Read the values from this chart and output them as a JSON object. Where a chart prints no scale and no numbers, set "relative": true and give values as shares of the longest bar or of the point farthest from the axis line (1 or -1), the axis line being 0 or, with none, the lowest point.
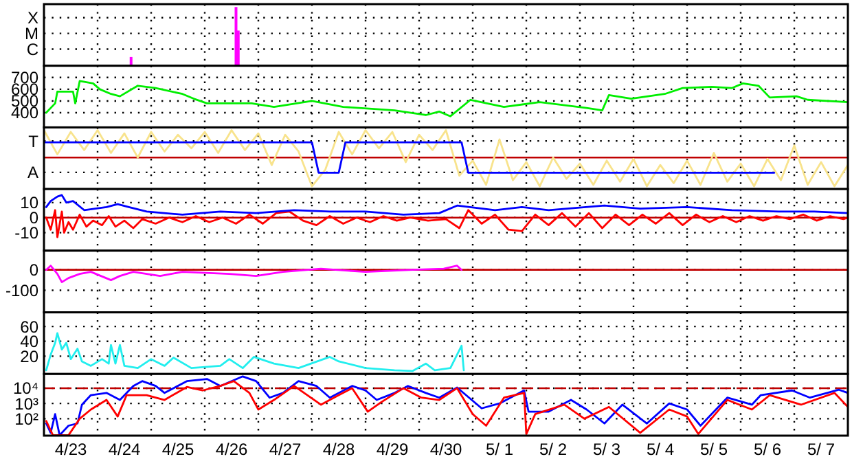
{
  "chart_data": [
    {
      "type": "bar",
      "xlim": [
        "--04-23T00:00",
        "--05-08T00:00"
      ],
      "xticks": [
        {
          "value": "--04-24T00:00",
          "label": null
        },
        {
          "value": "--04-25T00:00",
          "label": null
        },
        {
          "value": "--04-26T00:00",
          "label": null
        },
        {
          "value": "--04-27T00:00",
          "label": null
        },
        {
          "value": "--04-28T00:00",
          "label": null
        },
        {
          "value": "--04-29T00:00",
          "label": null
        },
        {
          "value": "--04-30T00:00",
          "label": null
        },
        {
          "value": "--05-01T00:00",
          "label": null
        },
        {
          "value": "--05-02T00:00",
          "label": null
        },
        {
          "value": "--05-03T00:00",
          "label": null
        },
        {
          "value": "--05-04T00:00",
          "label": null
        },
        {
          "value": "--05-05T00:00",
          "label": null
        },
        {
          "value": "--05-06T00:00",
          "label": null
        },
        {
          "value": "--05-07T00:00",
          "label": null
        }
      ],
      "relative": true,
      "annotations": [
        "X",
        "M",
        "C"
      ],
      "grid": true,
      "tick_labels": "y",
      "series": [
        {
          "color": "#ff00ff",
          "x": [
            "--04-24T15:00",
            "--04-26T14:00",
            "--04-26T15:00"
          ],
          "values": [
            0.15,
            1,
            0.6
          ]
        }
      ]
    },
    {
      "type": "line",
      "xlim": [
        "--04-23T00:00",
        "--05-08T00:00"
      ],
      "xticks": [
        {
          "value": "--04-24T00:00",
          "label": null
        },
        {
          "value": "--04-25T00:00",
          "label": null
        },
        {
          "value": "--04-26T00:00",
          "label": null
        },
        {
          "value": "--04-27T00:00",
          "label": null
        },
        {
          "value": "--04-28T00:00",
          "label": null
        },
        {
          "value": "--04-29T00:00",
          "label": null
        },
        {
          "value": "--04-30T00:00",
          "label": null
        },
        {
          "value": "--05-01T00:00",
          "label": null
        },
        {
          "value": "--05-02T00:00",
          "label": null
        },
        {
          "value": "--05-03T00:00",
          "label": null
        },
        {
          "value": "--05-04T00:00",
          "label": null
        },
        {
          "value": "--05-05T00:00",
          "label": null
        },
        {
          "value": "--05-06T00:00",
          "label": null
        },
        {
          "value": "--05-07T00:00",
          "label": null
        }
      ],
      "ylim": [
        275,
        800
      ],
      "yticks": [
        400,
        500,
        600,
        700
      ],
      "grid": true,
      "tick_labels": "y",
      "series": [
        {
          "color": "#00ee00",
          "x": [
            "--04-23T01:00",
            "--04-23T05:00",
            "--04-23T06:00",
            "--04-23T13:00",
            "--04-23T14:00",
            "--04-23T16:00",
            "--04-23T22:00",
            "--04-24T01:00",
            "--04-24T06:00",
            "--04-24T10:00",
            "--04-24T18:00",
            "--04-25T02:00",
            "--04-25T14:00",
            "--04-25T19:00",
            "--04-26T01:00",
            "--04-26T21:00",
            "--04-27T07:00",
            "--04-28T00:00",
            "--04-28T14:00",
            "--04-29T13:00",
            "--04-30T03:00",
            "--04-30T09:00",
            "--04-30T14:00",
            "--04-30T23:00",
            "--05-01T14:00",
            "--05-02T06:00",
            "--05-03T03:00",
            "--05-03T10:00",
            "--05-03T13:00",
            "--05-03T23:00",
            "--05-04T14:00",
            "--05-04T22:00",
            "--05-05T11:00",
            "--05-05T20:00",
            "--05-06T01:00",
            "--05-06T08:00",
            "--05-06T13:00",
            "--05-07T01:00",
            "--05-07T06:00",
            "--05-08T00:00"
          ],
          "values": [
            400,
            480,
            580,
            580,
            480,
            670,
            650,
            600,
            560,
            540,
            630,
            610,
            560,
            520,
            480,
            480,
            450,
            500,
            450,
            420,
            380,
            410,
            370,
            510,
            450,
            490,
            440,
            420,
            550,
            520,
            560,
            610,
            620,
            610,
            650,
            630,
            530,
            540,
            510,
            490
          ]
        }
      ]
    },
    {
      "type": "line",
      "xlim": [
        "--04-23T00:00",
        "--05-08T00:00"
      ],
      "xticks": [
        {
          "value": "--04-24T00:00",
          "label": null
        },
        {
          "value": "--04-25T00:00",
          "label": null
        },
        {
          "value": "--04-26T00:00",
          "label": null
        },
        {
          "value": "--04-27T00:00",
          "label": null
        },
        {
          "value": "--04-28T00:00",
          "label": null
        },
        {
          "value": "--04-29T00:00",
          "label": null
        },
        {
          "value": "--04-30T00:00",
          "label": null
        },
        {
          "value": "--05-01T00:00",
          "label": null
        },
        {
          "value": "--05-02T00:00",
          "label": null
        },
        {
          "value": "--05-03T00:00",
          "label": null
        },
        {
          "value": "--05-04T00:00",
          "label": null
        },
        {
          "value": "--05-05T00:00",
          "label": null
        },
        {
          "value": "--05-06T00:00",
          "label": null
        },
        {
          "value": "--05-07T00:00",
          "label": null
        }
      ],
      "relative": true,
      "annotations": [
        "T",
        "A"
      ],
      "grid": true,
      "tick_labels": "y",
      "ref_lines": [
        {
          "axis": "y",
          "value": 0,
          "color": "#c00000"
        }
      ],
      "series": [
        {
          "color": "#f8e38c",
          "x": [
            "--04-23T00:00",
            "--04-23T06:00",
            "--04-23T12:00",
            "--04-23T18:00",
            "--04-24T00:00",
            "--04-24T06:00",
            "--04-24T12:00",
            "--04-24T18:00",
            "--04-25T00:00",
            "--04-25T06:00",
            "--04-25T12:00",
            "--04-25T18:00",
            "--04-26T00:00",
            "--04-26T06:00",
            "--04-26T12:00",
            "--04-26T18:00",
            "--04-27T00:00",
            "--04-27T06:00",
            "--04-27T12:00",
            "--04-27T18:00",
            "--04-28T00:00",
            "--04-28T06:00",
            "--04-28T12:00",
            "--04-28T18:00",
            "--04-29T00:00",
            "--04-29T06:00",
            "--04-29T12:00",
            "--04-29T18:00",
            "--04-30T00:00",
            "--04-30T06:00",
            "--04-30T12:00",
            "--04-30T18:00",
            "--05-01T00:00",
            "--05-01T06:00",
            "--05-01T12:00",
            "--05-01T18:00",
            "--05-02T00:00",
            "--05-02T06:00",
            "--05-02T12:00",
            "--05-02T18:00",
            "--05-03T00:00",
            "--05-03T06:00",
            "--05-03T12:00",
            "--05-03T18:00",
            "--05-04T00:00",
            "--05-04T06:00",
            "--05-04T12:00",
            "--05-04T18:00",
            "--05-05T00:00",
            "--05-05T06:00",
            "--05-05T12:00",
            "--05-05T18:00",
            "--05-06T00:00",
            "--05-06T06:00",
            "--05-06T12:00",
            "--05-06T18:00",
            "--05-07T00:00",
            "--05-07T06:00",
            "--05-07T12:00",
            "--05-07T18:00",
            "--05-08T00:00"
          ],
          "values": [
            0.95,
            0.11,
            0.89,
            0.26,
            0.95,
            0.16,
            0.84,
            0,
            0.89,
            0.21,
            0.79,
            0.32,
            0.89,
            0.16,
            0.95,
            0.26,
            0.84,
            -0.26,
            0.79,
            0.21,
            -1,
            -0.42,
            0.89,
            0.11,
            0.95,
            0.32,
            0.89,
            -0.16,
            0.79,
            0.26,
            0.95,
            -0.63,
            -0.11,
            -0.95,
            0.63,
            -0.79,
            -0.16,
            -1,
            0,
            -0.74,
            -0.21,
            -0.95,
            -0.11,
            -0.84,
            -0.05,
            -1,
            -0.26,
            -0.89,
            -0.11,
            -0.95,
            0.16,
            -0.84,
            -0.21,
            -1,
            -0.05,
            -0.79,
            0.42,
            -0.95,
            -0.16,
            -1,
            -0.26
          ]
        },
        {
          "color": "#0000ff",
          "x": [
            "--04-23T00:00",
            "--04-28T00:00",
            "--04-28T03:00",
            "--04-28T12:00",
            "--04-28T15:00",
            "--04-30T19:00",
            "--04-30T22:00",
            "--05-06T15:00"
          ],
          "values": [
            0.53,
            0.53,
            -0.53,
            -0.53,
            0.53,
            0.53,
            -0.53,
            -0.53
          ]
        }
      ]
    },
    {
      "type": "line",
      "xlim": [
        "--04-23T00:00",
        "--05-08T00:00"
      ],
      "xticks": [
        {
          "value": "--04-24T00:00",
          "label": null
        },
        {
          "value": "--04-25T00:00",
          "label": null
        },
        {
          "value": "--04-26T00:00",
          "label": null
        },
        {
          "value": "--04-27T00:00",
          "label": null
        },
        {
          "value": "--04-28T00:00",
          "label": null
        },
        {
          "value": "--04-29T00:00",
          "label": null
        },
        {
          "value": "--04-30T00:00",
          "label": null
        },
        {
          "value": "--05-01T00:00",
          "label": null
        },
        {
          "value": "--05-02T00:00",
          "label": null
        },
        {
          "value": "--05-03T00:00",
          "label": null
        },
        {
          "value": "--05-04T00:00",
          "label": null
        },
        {
          "value": "--05-05T00:00",
          "label": null
        },
        {
          "value": "--05-06T00:00",
          "label": null
        },
        {
          "value": "--05-07T00:00",
          "label": null
        }
      ],
      "ylim": [
        -22,
        19
      ],
      "yticks": [
        -10,
        0,
        10
      ],
      "grid": true,
      "tick_labels": "y",
      "ref_lines": [
        {
          "axis": "y",
          "value": 0,
          "color": "#c00000"
        }
      ],
      "series": [
        {
          "color": "#ff0000",
          "x": [
            "--04-23T01:00",
            "--04-23T03:00",
            "--04-23T05:00",
            "--04-23T06:00",
            "--04-23T08:00",
            "--04-23T09:00",
            "--04-23T11:00",
            "--04-23T13:00",
            "--04-23T16:00",
            "--04-23T19:00",
            "--04-23T22:00",
            "--04-24T02:00",
            "--04-24T05:00",
            "--04-24T08:00",
            "--04-24T12:00",
            "--04-24T16:00",
            "--04-24T20:00",
            "--04-25T02:00",
            "--04-25T08:00",
            "--04-25T14:00",
            "--04-25T20:00",
            "--04-26T02:00",
            "--04-26T08:00",
            "--04-26T14:00",
            "--04-26T20:00",
            "--04-27T02:00",
            "--04-27T08:00",
            "--04-27T14:00",
            "--04-27T20:00",
            "--04-28T02:00",
            "--04-28T08:00",
            "--04-28T14:00",
            "--04-28T20:00",
            "--04-29T02:00",
            "--04-29T08:00",
            "--04-29T14:00",
            "--04-29T20:00",
            "--04-30T04:00",
            "--04-30T12:00",
            "--04-30T18:00",
            "--04-30T22:00",
            "--05-01T04:00",
            "--05-01T10:00",
            "--05-01T16:00",
            "--05-01T22:00",
            "--05-02T04:00",
            "--05-02T10:00",
            "--05-02T16:00",
            "--05-02T22:00",
            "--05-03T04:00",
            "--05-03T10:00",
            "--05-03T16:00",
            "--05-03T22:00",
            "--05-04T04:00",
            "--05-04T10:00",
            "--05-04T16:00",
            "--05-04T22:00",
            "--05-05T04:00",
            "--05-05T10:00",
            "--05-05T16:00",
            "--05-05T22:00",
            "--05-06T04:00",
            "--05-06T10:00",
            "--05-06T16:00",
            "--05-06T22:00",
            "--05-07T04:00",
            "--05-07T10:00",
            "--05-07T16:00",
            "--05-07T22:00",
            "--05-08T00:00"
          ],
          "values": [
            0,
            -8,
            5,
            -13,
            4,
            -10,
            -3,
            -8,
            2,
            -6,
            -2,
            -5,
            1,
            -6,
            -2,
            -7,
            -1,
            -4,
            0,
            -3,
            1,
            -3,
            0,
            -4,
            2,
            -4,
            3,
            4,
            -2,
            -5,
            1,
            -4,
            0,
            -3,
            1,
            -2,
            0,
            -2,
            -1,
            -7,
            5,
            -4,
            2,
            -8,
            -9,
            2,
            -5,
            3,
            -6,
            3,
            -7,
            2,
            -5,
            2,
            -4,
            3,
            -5,
            2,
            -3,
            1,
            -3,
            1,
            -2,
            1,
            -1,
            2,
            -2,
            1,
            -1,
            0
          ]
        },
        {
          "color": "#0000ff",
          "x": [
            "--04-23T01:00",
            "--04-23T03:00",
            "--04-23T06:00",
            "--04-23T08:00",
            "--04-23T10:00",
            "--04-23T13:00",
            "--04-23T18:00",
            "--04-24T04:00",
            "--04-24T09:00",
            "--04-24T14:00",
            "--04-24T22:00",
            "--04-25T14:00",
            "--04-26T07:00",
            "--04-26T23:00",
            "--04-27T16:00",
            "--04-28T08:00",
            "--04-29T00:00",
            "--04-29T17:00",
            "--04-30T09:00",
            "--04-30T17:00",
            "--05-01T10:00",
            "--05-01T22:00",
            "--05-02T10:00",
            "--05-03T11:00",
            "--05-04T03:00",
            "--05-05T00:00",
            "--05-05T20:00",
            "--05-06T17:00",
            "--05-07T09:00",
            "--05-08T00:00"
          ],
          "values": [
            7,
            11,
            14,
            15,
            10,
            11,
            5,
            7,
            9,
            7,
            4,
            2,
            4,
            3,
            5,
            4,
            4,
            2,
            3,
            8,
            5,
            7,
            5,
            8,
            6,
            7,
            5,
            4,
            4,
            3
          ]
        }
      ]
    },
    {
      "type": "line",
      "xlim": [
        "--04-23T00:00",
        "--05-08T00:00"
      ],
      "xticks": [
        {
          "value": "--04-24T00:00",
          "label": null
        },
        {
          "value": "--04-25T00:00",
          "label": null
        },
        {
          "value": "--04-26T00:00",
          "label": null
        },
        {
          "value": "--04-27T00:00",
          "label": null
        },
        {
          "value": "--04-28T00:00",
          "label": null
        },
        {
          "value": "--04-29T00:00",
          "label": null
        },
        {
          "value": "--04-30T00:00",
          "label": null
        },
        {
          "value": "--05-01T00:00",
          "label": null
        },
        {
          "value": "--05-02T00:00",
          "label": null
        },
        {
          "value": "--05-03T00:00",
          "label": null
        },
        {
          "value": "--05-04T00:00",
          "label": null
        },
        {
          "value": "--05-05T00:00",
          "label": null
        },
        {
          "value": "--05-06T00:00",
          "label": null
        },
        {
          "value": "--05-07T00:00",
          "label": null
        }
      ],
      "ylim": [
        -207,
        93
      ],
      "yticks": [
        -100,
        0
      ],
      "grid": true,
      "tick_labels": "y",
      "ref_lines": [
        {
          "axis": "y",
          "value": 0,
          "color": "#c00000"
        }
      ],
      "series": [
        {
          "color": "#ff00ff",
          "x": [
            "--04-23T01:00",
            "--04-23T03:00",
            "--04-23T06:00",
            "--04-23T08:00",
            "--04-23T11:00",
            "--04-23T16:00",
            "--04-23T21:00",
            "--04-24T06:00",
            "--04-24T10:00",
            "--04-24T16:00",
            "--04-25T04:00",
            "--04-25T14:00",
            "--04-26T11:00",
            "--04-26T23:00",
            "--04-27T11:00",
            "--04-28T04:00",
            "--04-29T00:00",
            "--04-29T21:00",
            "--04-30T11:00",
            "--04-30T17:00",
            "--04-30T19:00"
          ],
          "values": [
            0,
            20,
            -20,
            -60,
            -40,
            -20,
            -10,
            -50,
            -30,
            -10,
            -30,
            -10,
            -20,
            -30,
            -10,
            5,
            -10,
            0,
            5,
            20,
            0
          ]
        }
      ]
    },
    {
      "type": "line",
      "xlim": [
        "--04-23T00:00",
        "--05-08T00:00"
      ],
      "xticks": [
        {
          "value": "--04-24T00:00",
          "label": null
        },
        {
          "value": "--04-25T00:00",
          "label": null
        },
        {
          "value": "--04-26T00:00",
          "label": null
        },
        {
          "value": "--04-27T00:00",
          "label": null
        },
        {
          "value": "--04-28T00:00",
          "label": null
        },
        {
          "value": "--04-29T00:00",
          "label": null
        },
        {
          "value": "--04-30T00:00",
          "label": null
        },
        {
          "value": "--05-01T00:00",
          "label": null
        },
        {
          "value": "--05-02T00:00",
          "label": null
        },
        {
          "value": "--05-03T00:00",
          "label": null
        },
        {
          "value": "--05-04T00:00",
          "label": null
        },
        {
          "value": "--05-05T00:00",
          "label": null
        },
        {
          "value": "--05-06T00:00",
          "label": null
        },
        {
          "value": "--05-07T00:00",
          "label": null
        }
      ],
      "ylim": [
        -4,
        79
      ],
      "yticks": [
        20,
        40,
        60
      ],
      "grid": true,
      "tick_labels": "y",
      "series": [
        {
          "color": "#22eeee",
          "x": [
            "--04-23T01:00",
            "--04-23T03:00",
            "--04-23T05:00",
            "--04-23T06:00",
            "--04-23T08:00",
            "--04-23T10:00",
            "--04-23T12:00",
            "--04-23T15:00",
            "--04-23T17:00",
            "--04-23T21:00",
            "--04-24T02:00",
            "--04-24T05:00",
            "--04-24T06:00",
            "--04-24T08:00",
            "--04-24T10:00",
            "--04-24T12:00",
            "--04-24T18:00",
            "--04-25T00:00",
            "--04-25T06:00",
            "--04-25T10:00",
            "--04-25T18:00",
            "--04-26T07:00",
            "--04-26T11:00",
            "--04-26T17:00",
            "--04-26T22:00",
            "--04-27T07:00",
            "--04-27T18:00",
            "--04-28T08:00",
            "--04-28T12:00",
            "--04-29T00:00",
            "--04-29T13:00",
            "--04-29T21:00",
            "--04-30T03:00",
            "--04-30T07:00",
            "--04-30T14:00",
            "--04-30T17:00",
            "--04-30T19:00",
            "--04-30T20:00"
          ],
          "values": [
            1,
            22,
            38,
            51,
            29,
            38,
            16,
            30,
            13,
            7,
            16,
            10,
            35,
            10,
            35,
            7,
            4,
            16,
            7,
            18,
            4,
            7,
            16,
            4,
            19,
            10,
            4,
            19,
            13,
            4,
            1,
            0,
            10,
            1,
            4,
            22,
            34,
            1
          ]
        }
      ]
    },
    {
      "type": "line",
      "xlim": [
        "--04-23T00:00",
        "--05-08T00:00"
      ],
      "xticks": [
        {
          "value": "--04-23T12:00",
          "label": "4/23"
        },
        {
          "value": "--04-24T00:00",
          "label": null
        },
        {
          "value": "--04-24T12:00",
          "label": "4/24"
        },
        {
          "value": "--04-25T00:00",
          "label": null
        },
        {
          "value": "--04-25T12:00",
          "label": "4/25"
        },
        {
          "value": "--04-26T00:00",
          "label": null
        },
        {
          "value": "--04-26T12:00",
          "label": "4/26"
        },
        {
          "value": "--04-27T00:00",
          "label": null
        },
        {
          "value": "--04-27T12:00",
          "label": "4/27"
        },
        {
          "value": "--04-28T00:00",
          "label": null
        },
        {
          "value": "--04-28T12:00",
          "label": "4/28"
        },
        {
          "value": "--04-29T00:00",
          "label": null
        },
        {
          "value": "--04-29T12:00",
          "label": "4/29"
        },
        {
          "value": "--04-30T00:00",
          "label": null
        },
        {
          "value": "--04-30T12:00",
          "label": "4/30"
        },
        {
          "value": "--05-01T00:00",
          "label": null
        },
        {
          "value": "--05-01T12:00",
          "label": "5/ 1"
        },
        {
          "value": "--05-02T00:00",
          "label": null
        },
        {
          "value": "--05-02T12:00",
          "label": "5/ 2"
        },
        {
          "value": "--05-03T00:00",
          "label": null
        },
        {
          "value": "--05-03T12:00",
          "label": "5/ 3"
        },
        {
          "value": "--05-04T00:00",
          "label": null
        },
        {
          "value": "--05-04T12:00",
          "label": "5/ 4"
        },
        {
          "value": "--05-05T00:00",
          "label": null
        },
        {
          "value": "--05-05T12:00",
          "label": "5/ 5"
        },
        {
          "value": "--05-06T00:00",
          "label": null
        },
        {
          "value": "--05-06T12:00",
          "label": "5/ 6"
        },
        {
          "value": "--05-07T00:00",
          "label": null
        },
        {
          "value": "--05-07T12:00",
          "label": "5/ 7"
        }
      ],
      "ylim": [
        7.8,
        85000
      ],
      "yticks": [
        {
          "value": 100,
          "label": "10²"
        },
        {
          "value": 1000,
          "label": "10³"
        },
        {
          "value": 10000,
          "label": "10⁴"
        }
      ],
      "log": "y",
      "grid": true,
      "ref_lines": [
        {
          "axis": "y",
          "value": 10000,
          "color": "#c00000",
          "line_style": "dashed"
        }
      ],
      "series": [
        {
          "color": "#0000ff",
          "x": [
            "--04-23T01:00",
            "--04-23T03:00",
            "--04-23T05:00",
            "--04-23T07:00",
            "--04-23T11:00",
            "--04-23T15:00",
            "--04-23T17:00",
            "--04-23T21:00",
            "--04-24T04:00",
            "--04-24T10:00",
            "--04-24T16:00",
            "--04-24T20:00",
            "--04-25T02:00",
            "--04-25T06:00",
            "--04-25T16:00",
            "--04-26T01:00",
            "--04-26T07:00",
            "--04-26T17:00",
            "--04-26T23:00",
            "--04-27T05:00",
            "--04-27T11:00",
            "--04-27T18:00",
            "--04-28T02:00",
            "--04-28T08:00",
            "--04-28T18:00",
            "--04-29T00:00",
            "--04-29T05:00",
            "--04-29T13:00",
            "--04-29T19:00",
            "--04-30T03:00",
            "--04-30T09:00",
            "--04-30T17:00",
            "--05-01T04:00",
            "--05-01T12:00",
            "--05-01T23:00",
            "--05-02T01:00",
            "--05-02T10:00",
            "--05-02T20:00",
            "--05-03T03:00",
            "--05-03T11:00",
            "--05-03T19:00",
            "--05-04T06:00",
            "--05-04T16:00",
            "--05-05T00:00",
            "--05-05T06:00",
            "--05-05T18:00",
            "--05-06T05:00",
            "--05-06T09:00",
            "--05-06T23:00",
            "--05-07T07:00",
            "--05-07T20:00",
            "--05-08T00:00"
          ],
          "values": [
            49,
            12,
            200,
            8.3,
            35,
            49,
            830,
            3500,
            4900,
            1700,
            14000,
            29000,
            14000,
            4900,
            29000,
            40000,
            14000,
            59000,
            29000,
            2400,
            4900,
            29000,
            14000,
            2400,
            14000,
            7100,
            1700,
            4900,
            14000,
            4900,
            2400,
            11000,
            480,
            1000,
            7100,
            290,
            290,
            1700,
            400,
            49,
            830,
            49,
            1000,
            400,
            35,
            2400,
            830,
            3500,
            7100,
            2400,
            7900,
            4900
          ]
        },
        {
          "color": "#ff0000",
          "x": [
            "--04-23T01:00",
            "--04-23T04:00",
            "--04-23T11:00",
            "--04-23T16:00",
            "--04-23T21:00",
            "--04-24T04:00",
            "--04-24T09:00",
            "--04-24T13:00",
            "--04-24T22:00",
            "--04-25T06:00",
            "--04-25T16:00",
            "--04-25T23:00",
            "--04-26T07:00",
            "--04-26T13:00",
            "--04-26T20:00",
            "--04-27T00:00",
            "--04-27T07:00",
            "--04-27T16:00",
            "--04-28T04:00",
            "--04-28T12:00",
            "--04-28T18:00",
            "--04-29T01:00",
            "--04-29T07:00",
            "--04-29T17:00",
            "--04-30T01:00",
            "--04-30T09:00",
            "--04-30T17:00",
            "--05-01T00:00",
            "--05-01T06:00",
            "--05-01T14:00",
            "--05-01T23:00",
            "--05-02T00:00",
            "--05-02T04:00",
            "--05-02T17:00",
            "--05-03T02:00",
            "--05-03T13:00",
            "--05-04T03:00",
            "--05-04T16:00",
            "--05-05T00:00",
            "--05-05T05:00",
            "--05-05T18:00",
            "--05-06T05:00",
            "--05-06T13:00",
            "--05-07T03:00",
            "--05-07T18:00",
            "--05-08T00:00"
          ],
          "values": [
            71,
            8.3,
            8.3,
            100,
            400,
            1700,
            140,
            3500,
            3500,
            1700,
            12000,
            7100,
            14000,
            29000,
            4900,
            400,
            1700,
            14000,
            830,
            3500,
            10000,
            290,
            1200,
            10000,
            2400,
            1700,
            10000,
            200,
            35,
            2400,
            4900,
            10,
            200,
            830,
            100,
            590,
            12,
            400,
            140,
            10,
            1700,
            400,
            3500,
            830,
            4900,
            590
          ]
        }
      ]
    }
  ]
}
